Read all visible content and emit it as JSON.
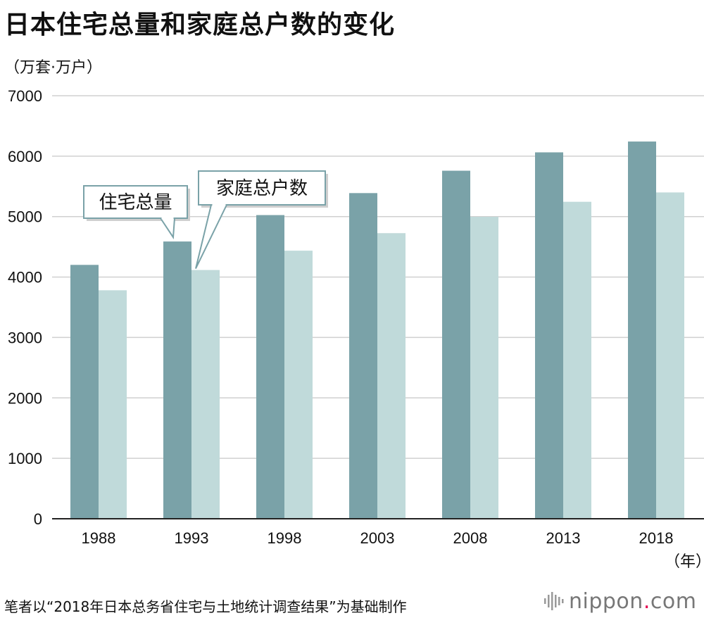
{
  "title": "日本住宅总量和家庭总户数的变化",
  "source_note": "笔者以“2018年日本总务省住宅与土地统计调查结果”为基础制作",
  "brand": {
    "name": "nippon",
    "dot": ".",
    "suffix": "com",
    "icon": "sound-wave-logo-icon",
    "accent": "#e5004f"
  },
  "colors": {
    "housing": "#7aa2a8",
    "households": "#c0dada"
  },
  "chart_data": {
    "type": "bar",
    "title": "日本住宅总量和家庭总户数的变化",
    "ylabel": "（万套·万户）",
    "xlabel": "（年）",
    "categories": [
      "1988",
      "1993",
      "1998",
      "2003",
      "2008",
      "2013",
      "2018"
    ],
    "series": [
      {
        "name": "住宅总量",
        "values": [
          4201,
          4588,
          5025,
          5389,
          5759,
          6063,
          6242
        ]
      },
      {
        "name": "家庭总户数",
        "values": [
          3781,
          4116,
          4436,
          4726,
          4997,
          5245,
          5400
        ]
      }
    ],
    "ylim": [
      0,
      7000
    ],
    "yticks": [
      "0",
      "1000",
      "2000",
      "3000",
      "4000",
      "5000",
      "6000",
      "7000"
    ],
    "grid": true,
    "legend": "callout labels pointing to 1993 bars"
  }
}
